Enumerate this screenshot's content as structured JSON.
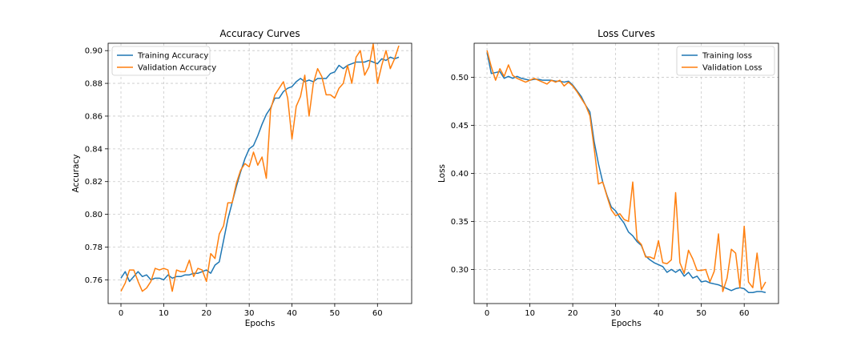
{
  "chart_data": [
    {
      "type": "line",
      "title": "Accuracy Curves",
      "xlabel": "Epochs",
      "ylabel": "Accuracy",
      "xlim": [
        -3,
        68
      ],
      "ylim": [
        0.7455,
        0.9045
      ],
      "xticks": [
        0,
        10,
        20,
        30,
        40,
        50,
        60
      ],
      "yticks": [
        0.76,
        0.78,
        0.8,
        0.82,
        0.84,
        0.86,
        0.88,
        0.9
      ],
      "xtick_labels": [
        "0",
        "10",
        "20",
        "30",
        "40",
        "50",
        "60"
      ],
      "ytick_labels": [
        "0.76",
        "0.78",
        "0.80",
        "0.82",
        "0.84",
        "0.86",
        "0.88",
        "0.90"
      ],
      "grid": true,
      "legend_position": "top-left",
      "series": [
        {
          "name": "Training Accuracy",
          "color": "#1f77b4",
          "values": [
            0.761,
            0.765,
            0.759,
            0.762,
            0.765,
            0.762,
            0.763,
            0.76,
            0.761,
            0.761,
            0.76,
            0.763,
            0.761,
            0.762,
            0.762,
            0.763,
            0.763,
            0.764,
            0.764,
            0.765,
            0.766,
            0.764,
            0.769,
            0.771,
            0.784,
            0.797,
            0.807,
            0.817,
            0.826,
            0.834,
            0.84,
            0.842,
            0.848,
            0.855,
            0.861,
            0.865,
            0.871,
            0.871,
            0.875,
            0.877,
            0.878,
            0.881,
            0.883,
            0.881,
            0.882,
            0.881,
            0.883,
            0.883,
            0.883,
            0.886,
            0.887,
            0.891,
            0.889,
            0.891,
            0.892,
            0.893,
            0.893,
            0.893,
            0.894,
            0.893,
            0.892,
            0.895,
            0.894,
            0.896,
            0.895,
            0.896
          ]
        },
        {
          "name": "Validation Accuracy",
          "color": "#ff7f0e",
          "values": [
            0.753,
            0.758,
            0.766,
            0.766,
            0.759,
            0.753,
            0.755,
            0.759,
            0.767,
            0.766,
            0.767,
            0.766,
            0.753,
            0.766,
            0.765,
            0.765,
            0.772,
            0.762,
            0.767,
            0.766,
            0.759,
            0.776,
            0.773,
            0.788,
            0.793,
            0.807,
            0.807,
            0.819,
            0.827,
            0.831,
            0.829,
            0.838,
            0.83,
            0.835,
            0.822,
            0.864,
            0.873,
            0.877,
            0.881,
            0.871,
            0.846,
            0.866,
            0.872,
            0.885,
            0.86,
            0.88,
            0.889,
            0.884,
            0.873,
            0.873,
            0.871,
            0.877,
            0.88,
            0.891,
            0.88,
            0.896,
            0.9,
            0.885,
            0.89,
            0.904,
            0.88,
            0.891,
            0.9,
            0.889,
            0.895,
            0.903
          ]
        }
      ]
    },
    {
      "type": "line",
      "title": "Loss Curves",
      "xlabel": "Epochs",
      "ylabel": "Loss",
      "xlim": [
        -3,
        68
      ],
      "ylim": [
        0.2645,
        0.5355
      ],
      "xticks": [
        0,
        10,
        20,
        30,
        40,
        50,
        60
      ],
      "yticks": [
        0.3,
        0.35,
        0.4,
        0.45,
        0.5
      ],
      "xtick_labels": [
        "0",
        "10",
        "20",
        "30",
        "40",
        "50",
        "60"
      ],
      "ytick_labels": [
        "0.30",
        "0.35",
        "0.40",
        "0.45",
        "0.50"
      ],
      "grid": true,
      "legend_position": "top-right",
      "series": [
        {
          "name": "Training loss",
          "color": "#1f77b4",
          "values": [
            0.526,
            0.504,
            0.505,
            0.506,
            0.499,
            0.501,
            0.499,
            0.501,
            0.499,
            0.498,
            0.497,
            0.498,
            0.498,
            0.497,
            0.497,
            0.497,
            0.496,
            0.496,
            0.495,
            0.496,
            0.492,
            0.486,
            0.48,
            0.471,
            0.464,
            0.433,
            0.41,
            0.391,
            0.377,
            0.365,
            0.361,
            0.354,
            0.348,
            0.339,
            0.335,
            0.329,
            0.325,
            0.314,
            0.31,
            0.307,
            0.305,
            0.303,
            0.297,
            0.3,
            0.297,
            0.3,
            0.293,
            0.297,
            0.291,
            0.293,
            0.287,
            0.288,
            0.286,
            0.285,
            0.284,
            0.282,
            0.28,
            0.278,
            0.28,
            0.281,
            0.28,
            0.276,
            0.276,
            0.277,
            0.277,
            0.276
          ]
        },
        {
          "name": "Validation Loss",
          "color": "#ff7f0e",
          "values": [
            0.528,
            0.511,
            0.497,
            0.509,
            0.501,
            0.513,
            0.502,
            0.499,
            0.497,
            0.495,
            0.497,
            0.499,
            0.497,
            0.495,
            0.493,
            0.497,
            0.495,
            0.497,
            0.491,
            0.495,
            0.491,
            0.485,
            0.478,
            0.471,
            0.46,
            0.426,
            0.389,
            0.391,
            0.376,
            0.362,
            0.356,
            0.358,
            0.352,
            0.35,
            0.391,
            0.331,
            0.326,
            0.313,
            0.313,
            0.311,
            0.33,
            0.307,
            0.306,
            0.31,
            0.38,
            0.307,
            0.296,
            0.32,
            0.311,
            0.299,
            0.299,
            0.3,
            0.287,
            0.298,
            0.337,
            0.277,
            0.291,
            0.321,
            0.317,
            0.281,
            0.345,
            0.287,
            0.281,
            0.317,
            0.279,
            0.287
          ]
        }
      ]
    }
  ]
}
